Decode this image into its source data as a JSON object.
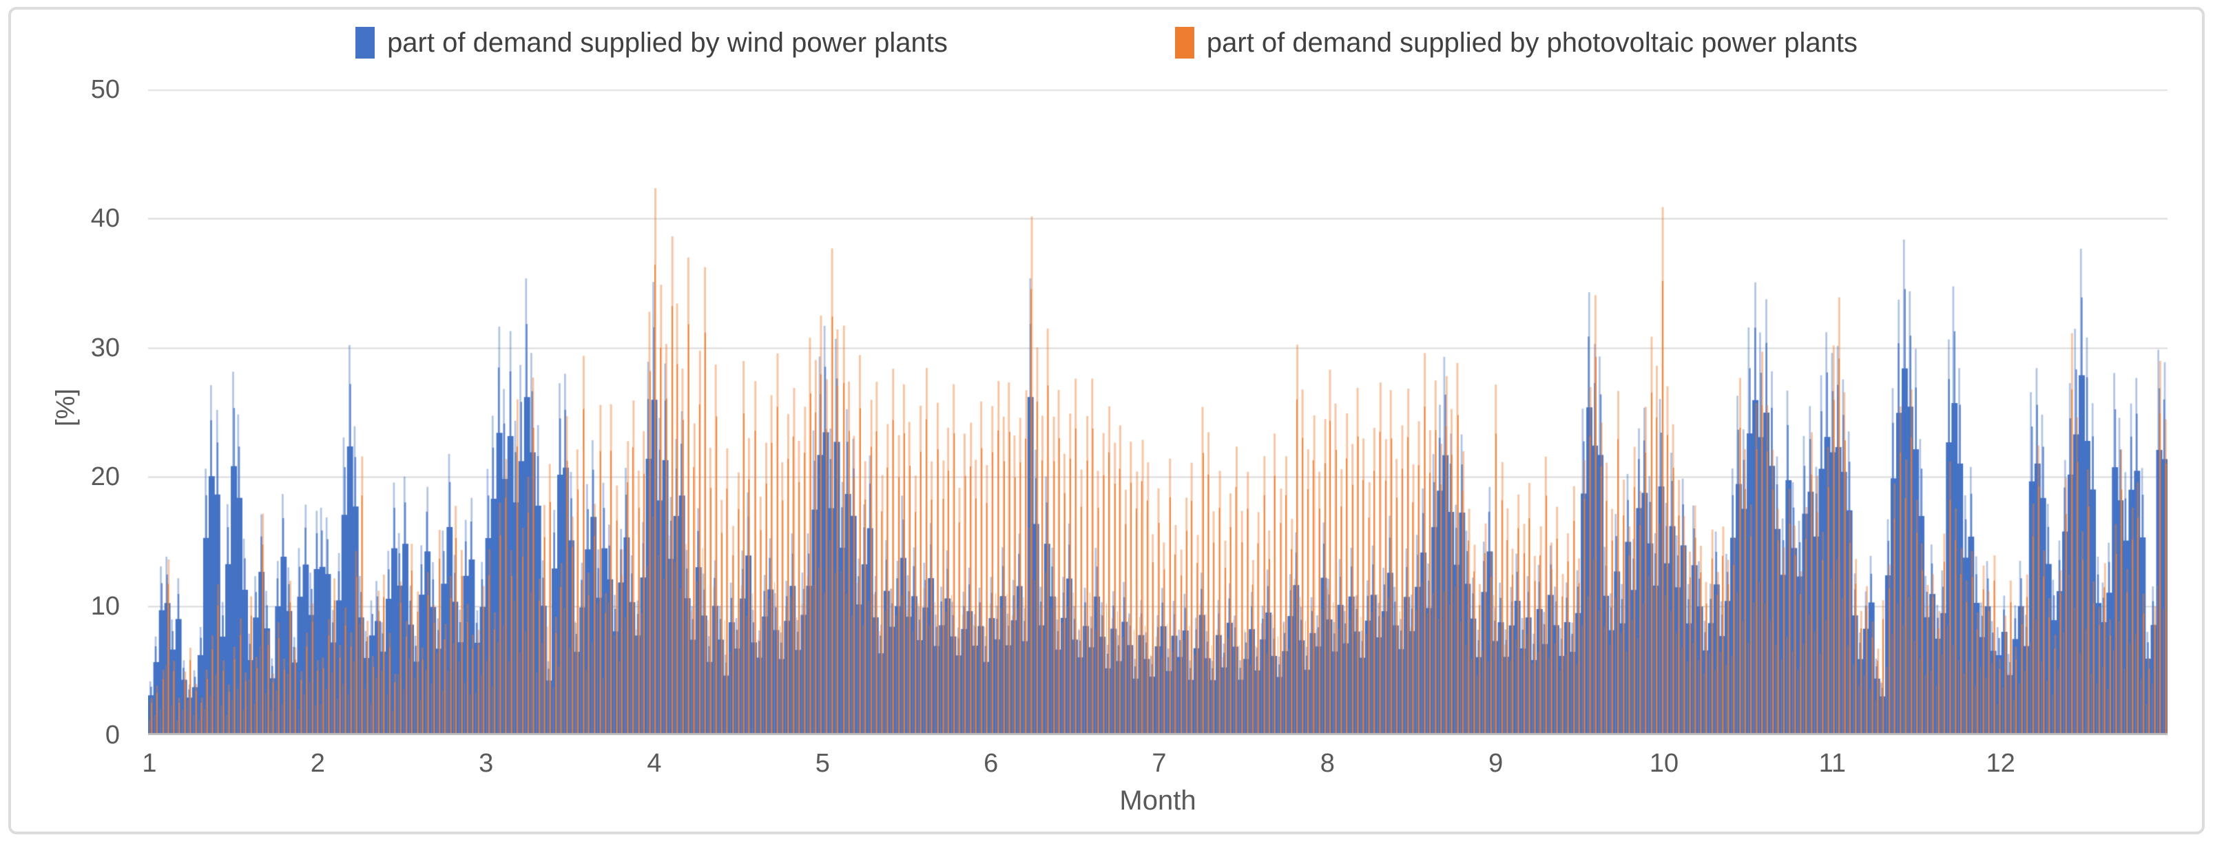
{
  "legend": {
    "wind_label": "part of demand supplied by wind power plants",
    "pv_label": "part of demand supplied by photovoltaic power plants"
  },
  "axes": {
    "y_title": "[%]",
    "x_title": "Month",
    "y_ticks": [
      50,
      40,
      30,
      20,
      10,
      0
    ],
    "x_ticks": [
      1,
      2,
      3,
      4,
      5,
      6,
      7,
      8,
      9,
      10,
      11,
      12
    ]
  },
  "colors": {
    "wind": "#4472C4",
    "wind_mid": "rgba(68,114,196,0.75)",
    "wind_light": "rgba(68,114,196,0.42)",
    "pv": "#ED7D31",
    "pv_light": "rgba(237,125,49,0.45)",
    "pv_mid": "rgba(237,125,49,0.6)",
    "grid": "#D9D9D9",
    "axis": "#BFBFBF",
    "text": "#595959",
    "frame": "#DCDCDC"
  },
  "chart_data": {
    "type": "area",
    "title": "",
    "xlabel": "Month",
    "ylabel": "[%]",
    "ylim": [
      0,
      50
    ],
    "grid": true,
    "legend_position": "top",
    "x_months": [
      1,
      2,
      3,
      4,
      5,
      6,
      7,
      8,
      9,
      10,
      11,
      12
    ],
    "series": [
      {
        "name": "part of demand supplied by wind power plants",
        "color": "#4472C4",
        "daily_values": {
          "m1": [
            4,
            8,
            13,
            14,
            9,
            12,
            6,
            4,
            5,
            8,
            20,
            28,
            24,
            10,
            18,
            27,
            25,
            15,
            8,
            12,
            17,
            11,
            6,
            14,
            19,
            13,
            8,
            15,
            18,
            12,
            17
          ],
          "m2": [
            18,
            17,
            10,
            14,
            22,
            29,
            24,
            12,
            8,
            10,
            12,
            9,
            14,
            19,
            16,
            20,
            12,
            8,
            15,
            20,
            13,
            9,
            16,
            21,
            14,
            10,
            17,
            19
          ],
          "m3": [
            10,
            14,
            20,
            26,
            33,
            28,
            31,
            25,
            29,
            36,
            30,
            24,
            14,
            6,
            18,
            27,
            29,
            20,
            9,
            14,
            19,
            23,
            15,
            20,
            17,
            11,
            16,
            21,
            14,
            10,
            16
          ],
          "m4": [
            30,
            35,
            24,
            28,
            18,
            22,
            26,
            15,
            10,
            18,
            12,
            8,
            14,
            10,
            6,
            12,
            9,
            14,
            18,
            10,
            8,
            13,
            16,
            11,
            8,
            12,
            15,
            9,
            12,
            16
          ],
          "m5": [
            23,
            28,
            33,
            25,
            30,
            20,
            26,
            22,
            14,
            18,
            21,
            12,
            9,
            15,
            11,
            14,
            18,
            12,
            15,
            10,
            13,
            16,
            9,
            12,
            14,
            10,
            8,
            11,
            13,
            9,
            12
          ],
          "m6": [
            8,
            12,
            10,
            14,
            9,
            12,
            16,
            10,
            34,
            22,
            12,
            20,
            15,
            9,
            12,
            16,
            10,
            8,
            12,
            9,
            14,
            10,
            7,
            11,
            8,
            12,
            9,
            6,
            10,
            8
          ],
          "m7": [
            6,
            9,
            12,
            7,
            10,
            8,
            11,
            6,
            9,
            13,
            8,
            6,
            10,
            7,
            12,
            9,
            6,
            8,
            11,
            7,
            10,
            13,
            8,
            6,
            9,
            12,
            15,
            10,
            7,
            11,
            9
          ],
          "m8": [
            16,
            12,
            9,
            13,
            10,
            14,
            11,
            8,
            12,
            15,
            10,
            13,
            17,
            12,
            9,
            14,
            11,
            15,
            19,
            13,
            22,
            26,
            29,
            24,
            18,
            23,
            16,
            12,
            8,
            15,
            20
          ],
          "m9": [
            10,
            12,
            8,
            11,
            14,
            9,
            12,
            8,
            13,
            10,
            14,
            11,
            8,
            12,
            9,
            13,
            25,
            36,
            30,
            28,
            14,
            11,
            18,
            12,
            20,
            15,
            24,
            26,
            20,
            16
          ],
          "m10": [
            26,
            18,
            22,
            15,
            20,
            12,
            18,
            14,
            9,
            12,
            16,
            10,
            14,
            21,
            27,
            24,
            31,
            35,
            30,
            33,
            28,
            22,
            16,
            28,
            20,
            16,
            24,
            26,
            20,
            28,
            31
          ],
          "m11": [
            29,
            31,
            28,
            23,
            12,
            8,
            11,
            14,
            6,
            4,
            16,
            28,
            35,
            37,
            33,
            29,
            22,
            12,
            15,
            10,
            13,
            30,
            34,
            28,
            18,
            20,
            14,
            10,
            13,
            9
          ],
          "m12": [
            8,
            11,
            6,
            10,
            13,
            9,
            26,
            29,
            24,
            18,
            12,
            15,
            22,
            28,
            31,
            37,
            31,
            25,
            14,
            12,
            15,
            27,
            24,
            21,
            26,
            28,
            20,
            8,
            12,
            29,
            30
          ]
        }
      },
      {
        "name": "part of demand supplied by photovoltaic power plants",
        "color": "#ED7D31",
        "daily_values": {
          "m1": [
            3,
            4,
            5,
            14,
            6,
            3,
            5,
            7,
            4,
            3,
            5,
            8,
            12,
            6,
            4,
            7,
            9,
            5,
            11,
            6,
            17,
            8,
            5,
            9,
            6,
            12,
            7,
            5,
            8,
            10,
            6
          ],
          "m2": [
            6,
            9,
            12,
            7,
            10,
            8,
            14,
            22,
            9,
            6,
            11,
            13,
            8,
            5,
            12,
            9,
            15,
            11,
            7,
            13,
            10,
            16,
            9,
            12,
            18,
            14,
            10,
            8
          ],
          "m3": [
            8,
            12,
            15,
            10,
            18,
            22,
            14,
            26,
            16,
            20,
            28,
            12,
            18,
            21,
            9,
            14,
            24,
            17,
            22,
            29,
            13,
            18,
            25,
            11,
            26,
            19,
            15,
            23,
            27,
            20,
            24
          ],
          "m4": [
            32,
            44,
            36,
            30,
            38,
            34,
            28,
            37,
            25,
            30,
            36,
            22,
            28,
            18,
            23,
            16,
            20,
            29,
            24,
            27,
            18,
            22,
            26,
            29,
            21,
            25,
            28,
            23,
            26,
            30
          ],
          "m5": [
            30,
            34,
            29,
            38,
            33,
            31,
            27,
            24,
            29,
            22,
            26,
            28,
            21,
            25,
            29,
            23,
            27,
            24,
            20,
            26,
            29,
            22,
            25,
            21,
            24,
            27,
            20,
            23,
            25,
            22,
            26
          ],
          "m6": [
            22,
            26,
            28,
            24,
            27,
            23,
            25,
            28,
            42,
            30,
            26,
            32,
            24,
            27,
            22,
            25,
            28,
            21,
            24,
            27,
            20,
            23,
            26,
            22,
            25,
            19,
            23,
            21,
            24,
            22
          ],
          "m7": [
            16,
            19,
            15,
            21,
            17,
            14,
            18,
            22,
            16,
            25,
            24,
            18,
            21,
            15,
            19,
            23,
            17,
            20,
            14,
            18,
            21,
            16,
            24,
            19,
            22,
            17,
            31,
            27,
            23,
            26,
            20
          ],
          "m8": [
            24,
            29,
            25,
            21,
            26,
            22,
            27,
            24,
            20,
            25,
            28,
            23,
            26,
            21,
            24,
            27,
            22,
            25,
            29,
            24,
            27,
            23,
            29,
            26,
            28,
            23,
            18,
            15,
            12,
            17,
            14
          ],
          "m9": [
            28,
            21,
            18,
            15,
            19,
            16,
            20,
            14,
            17,
            21,
            15,
            18,
            13,
            16,
            19,
            14,
            22,
            28,
            34,
            25,
            22,
            18,
            27,
            20,
            16,
            23,
            19,
            26,
            30,
            29
          ],
          "m10": [
            40,
            28,
            24,
            20,
            17,
            14,
            18,
            15,
            12,
            16,
            13,
            17,
            14,
            16,
            27,
            22,
            18,
            25,
            30,
            26,
            22,
            18,
            15,
            19,
            16,
            13,
            18,
            24,
            20,
            16,
            22
          ],
          "m11": [
            30,
            35,
            26,
            18,
            14,
            10,
            12,
            9,
            7,
            11,
            13,
            20,
            25,
            22,
            27,
            18,
            15,
            12,
            13,
            10,
            16,
            21,
            18,
            15,
            12,
            14,
            10,
            13,
            11,
            14
          ],
          "m12": [
            6,
            9,
            12,
            7,
            10,
            13,
            18,
            22,
            15,
            11,
            8,
            13,
            20,
            31,
            24,
            16,
            20,
            12,
            10,
            14,
            9,
            16,
            22,
            13,
            18,
            20,
            11,
            6,
            10,
            30,
            24
          ]
        }
      }
    ]
  }
}
